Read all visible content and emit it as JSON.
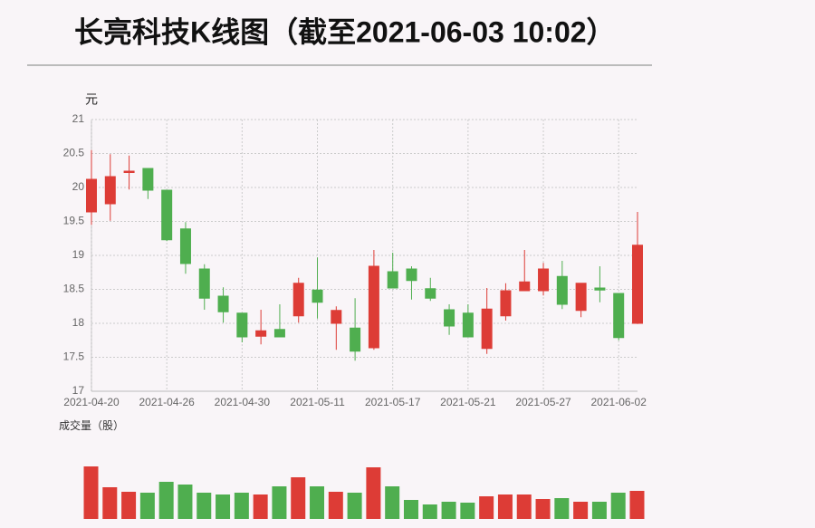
{
  "chart_data": {
    "type": "candlestick",
    "title": "长亮科技K线图（截至2021-06-03 10:02）",
    "y_label": "元",
    "volume_label": "成交量（股）",
    "categories": [
      "2021-04-20",
      null,
      null,
      null,
      "2021-04-26",
      null,
      null,
      null,
      "2021-04-30",
      null,
      null,
      null,
      "2021-05-11",
      null,
      null,
      null,
      "2021-05-17",
      null,
      null,
      null,
      "2021-05-21",
      null,
      null,
      null,
      "2021-05-27",
      null,
      null,
      null,
      "2021-06-02",
      null
    ],
    "open": [
      19.64,
      19.76,
      20.22,
      20.28,
      19.96,
      19.39,
      18.8,
      18.4,
      18.15,
      17.81,
      17.91,
      18.11,
      18.49,
      18.0,
      17.93,
      17.64,
      18.76,
      18.8,
      18.51,
      18.2,
      18.15,
      17.63,
      18.11,
      18.48,
      18.48,
      18.69,
      18.19,
      18.52,
      18.44,
      18.0
    ],
    "close": [
      20.12,
      20.16,
      20.24,
      19.96,
      19.23,
      18.88,
      18.37,
      18.17,
      17.8,
      17.89,
      17.8,
      18.59,
      18.31,
      18.19,
      17.59,
      18.84,
      18.52,
      18.63,
      18.37,
      17.96,
      17.8,
      18.21,
      18.48,
      18.61,
      18.8,
      18.28,
      18.59,
      18.49,
      17.79,
      19.15
    ],
    "high": [
      20.55,
      20.49,
      20.47,
      20.28,
      19.96,
      19.49,
      18.87,
      18.53,
      18.15,
      18.2,
      18.28,
      18.67,
      18.97,
      18.25,
      18.37,
      19.08,
      19.04,
      18.84,
      18.67,
      18.28,
      18.28,
      18.52,
      18.59,
      19.08,
      18.89,
      18.92,
      18.59,
      18.84,
      18.44,
      19.64
    ],
    "low": [
      19.45,
      19.51,
      19.97,
      19.83,
      19.21,
      18.73,
      18.2,
      18.01,
      17.72,
      17.69,
      17.8,
      18.01,
      18.07,
      17.61,
      17.45,
      17.61,
      18.52,
      18.35,
      18.33,
      17.83,
      17.8,
      17.55,
      18.04,
      18.48,
      18.41,
      18.21,
      18.09,
      18.31,
      17.75,
      17.99
    ],
    "volume": [
      58,
      35,
      30,
      29,
      41,
      38,
      29,
      27,
      29,
      27,
      36,
      46,
      36,
      30,
      29,
      57,
      36,
      21,
      16,
      19,
      18,
      25,
      27,
      27,
      22,
      23,
      19,
      19,
      29,
      31
    ],
    "up_color": "#dd3c36",
    "down_color": "#4fae4f",
    "ylim": [
      17,
      21
    ],
    "yticks": [
      17,
      17.5,
      18,
      18.5,
      19,
      19.5,
      20,
      20.5,
      21
    ],
    "grid": true
  }
}
